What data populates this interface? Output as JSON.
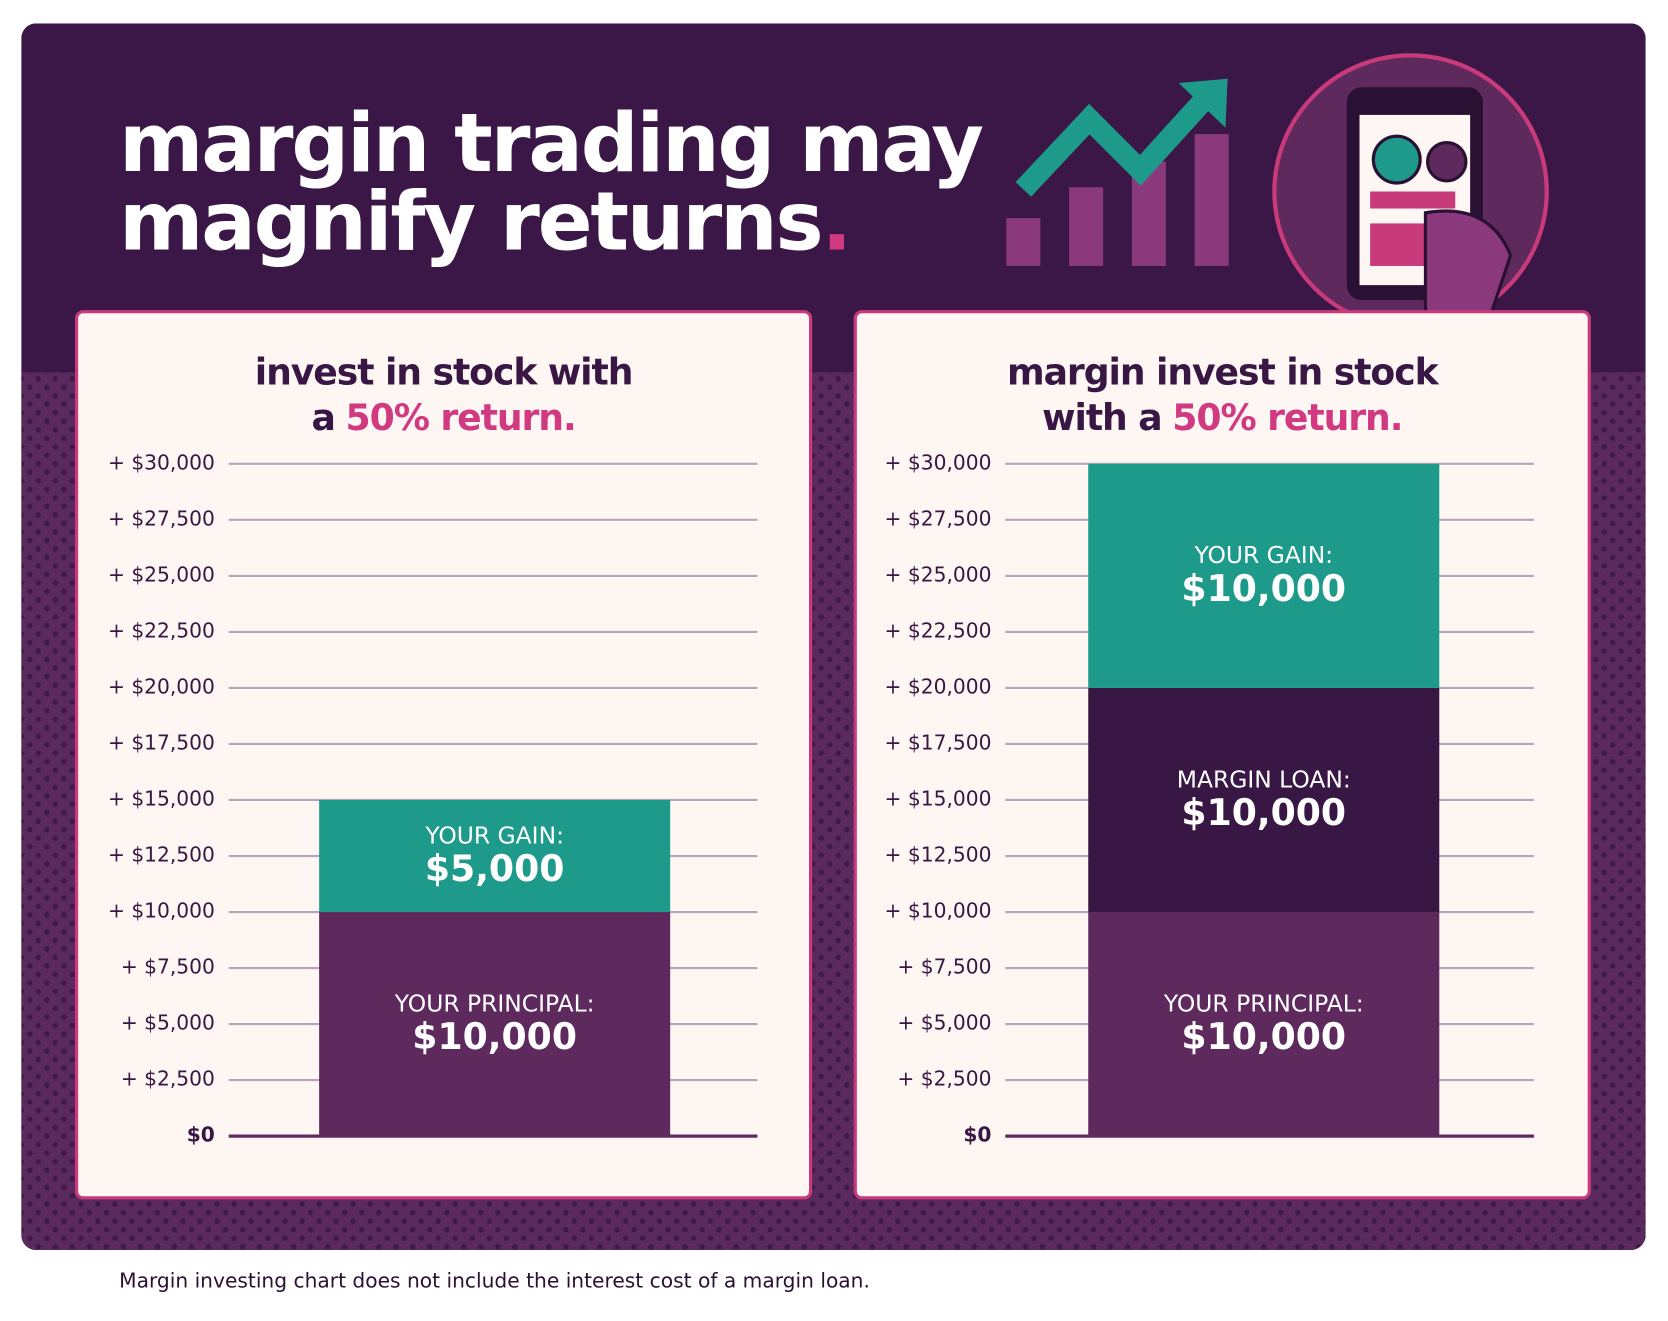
{
  "header": {
    "title_lines": [
      "margin trading may",
      "magnify returns"
    ],
    "title_punctuation": "."
  },
  "chart_data": [
    {
      "type": "stacked_bar",
      "title_lines": [
        "invest in stock with",
        "a"
      ],
      "title_highlight": "50% return.",
      "ylim": [
        0,
        30000
      ],
      "yticks": [
        {
          "value": 0,
          "label": "$0"
        },
        {
          "value": 2500,
          "label": "+ $2,500"
        },
        {
          "value": 5000,
          "label": "+ $5,000"
        },
        {
          "value": 7500,
          "label": "+ $7,500"
        },
        {
          "value": 10000,
          "label": "+ $10,000"
        },
        {
          "value": 12500,
          "label": "+ $12,500"
        },
        {
          "value": 15000,
          "label": "+ $15,000"
        },
        {
          "value": 17500,
          "label": "+ $17,500"
        },
        {
          "value": 20000,
          "label": "+ $20,000"
        },
        {
          "value": 22500,
          "label": "+ $22,500"
        },
        {
          "value": 25000,
          "label": "+ $25,000"
        },
        {
          "value": 27500,
          "label": "+ $27,500"
        },
        {
          "value": 30000,
          "label": "+ $30,000"
        }
      ],
      "grid": true,
      "series": [
        {
          "name": "YOUR PRINCIPAL:",
          "color": "#5e2a5e",
          "values": [
            10000
          ],
          "value_labels": [
            "$10,000"
          ]
        },
        {
          "name": "YOUR GAIN:",
          "color": "#1e9a8a",
          "values": [
            5000
          ],
          "value_labels": [
            "$5,000"
          ]
        }
      ]
    },
    {
      "type": "stacked_bar",
      "title_lines": [
        "margin invest in stock",
        "with a"
      ],
      "title_highlight": "50% return.",
      "ylim": [
        0,
        30000
      ],
      "yticks": [
        {
          "value": 0,
          "label": "$0"
        },
        {
          "value": 2500,
          "label": "+ $2,500"
        },
        {
          "value": 5000,
          "label": "+ $5,000"
        },
        {
          "value": 7500,
          "label": "+ $7,500"
        },
        {
          "value": 10000,
          "label": "+ $10,000"
        },
        {
          "value": 12500,
          "label": "+ $12,500"
        },
        {
          "value": 15000,
          "label": "+ $15,000"
        },
        {
          "value": 17500,
          "label": "+ $17,500"
        },
        {
          "value": 20000,
          "label": "+ $20,000"
        },
        {
          "value": 22500,
          "label": "+ $22,500"
        },
        {
          "value": 25000,
          "label": "+ $25,000"
        },
        {
          "value": 27500,
          "label": "+ $27,500"
        },
        {
          "value": 30000,
          "label": "+ $30,000"
        }
      ],
      "grid": true,
      "series": [
        {
          "name": "YOUR PRINCIPAL:",
          "color": "#5e2a5e",
          "values": [
            10000
          ],
          "value_labels": [
            "$10,000"
          ]
        },
        {
          "name": "MARGIN LOAN:",
          "color": "#381744",
          "values": [
            10000
          ],
          "value_labels": [
            "$10,000"
          ]
        },
        {
          "name": "YOUR GAIN:",
          "color": "#1e9a8a",
          "values": [
            10000
          ],
          "value_labels": [
            "$10,000"
          ]
        }
      ]
    }
  ],
  "footnote": "Margin investing chart does not include the interest cost of a margin loan."
}
